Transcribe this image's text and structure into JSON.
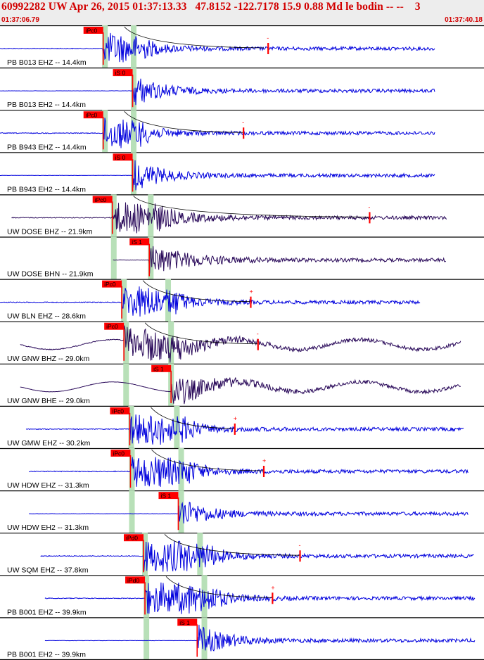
{
  "header": {
    "title": "60992282 UW Apr 26, 2015 01:37:13.33   47.8152 -122.7178 15.9 0.88 Md le bodin -- --    3",
    "time_start": "01:37:06.79",
    "time_end": "01:37:40.18"
  },
  "colors": {
    "header_bg": "#ededed",
    "header_text": "#d20000",
    "trace_blue": "#0000dd",
    "trace_dark": "#2a0a5a",
    "pick_flag": "#ff0000",
    "theoretical_bar": "#b8e0b8",
    "coda_line": "#000000"
  },
  "chart_data": {
    "type": "seismogram",
    "time_range": [
      "01:37:06.79",
      "01:37:40.18"
    ],
    "traces": [
      {
        "label": "PB B013 EHZ -- 14.4km",
        "pick": "iPc0",
        "color": "blue",
        "p_time": 7.12,
        "green_time": 7.24,
        "s_time": 9.06,
        "s_green_time": 9.22,
        "coda_time": 18.2,
        "amp_mark": "-",
        "amp_time": 18.5,
        "trace_start": 0.0,
        "trace_end": 30.0
      },
      {
        "label": "PB B013 EH2 -- 14.4km",
        "pick": "iS 0",
        "color": "blue",
        "p_time": 9.15,
        "green_time": null,
        "s_time": null,
        "s_green_time": 9.22,
        "coda_time": null,
        "amp_mark": null,
        "trace_start": 0.0,
        "trace_end": 30.0
      },
      {
        "label": "PB B943 EHZ -- 14.4km",
        "pick": "iPc0",
        "color": "blue",
        "p_time": 7.12,
        "green_time": 7.24,
        "s_time": null,
        "s_green_time": 9.22,
        "coda_time": 16.8,
        "amp_mark": "-",
        "amp_time": 16.8,
        "trace_start": 0.0,
        "trace_end": 30.0
      },
      {
        "label": "PB B943 EH2 -- 14.4km",
        "pick": "iS 0",
        "color": "blue",
        "p_time": 9.15,
        "green_time": null,
        "s_time": null,
        "s_green_time": 9.22,
        "coda_time": null,
        "amp_mark": null,
        "trace_start": 0.0,
        "trace_end": 30.0
      },
      {
        "label": "UW DOSE BHZ -- 21.9km",
        "pick": "iPc0",
        "color": "dark",
        "p_time": 7.75,
        "green_time": 7.85,
        "s_time": null,
        "s_green_time": 10.4,
        "coda_time": 25.5,
        "amp_mark": "-",
        "amp_time": 25.5,
        "trace_start": 0.8,
        "trace_end": 30.8
      },
      {
        "label": "UW DOSE BHN -- 21.9km",
        "pick": "iS 1",
        "color": "dark",
        "p_time": 10.3,
        "green_time": 7.85,
        "s_time": null,
        "s_green_time": 10.4,
        "coda_time": null,
        "amp_mark": null,
        "trace_start": 7.8,
        "trace_end": 30.8
      },
      {
        "label": "UW BLN EHZ -- 28.6km",
        "pick": "iPc0",
        "color": "blue",
        "p_time": 8.4,
        "green_time": 8.55,
        "s_time": null,
        "s_green_time": 11.6,
        "coda_time": 17.3,
        "amp_mark": "+",
        "amp_time": 17.3,
        "trace_start": 0.0,
        "trace_end": 29.0
      },
      {
        "label": "UW GNW BHZ -- 29.0km",
        "pick": "iPc0",
        "color": "dark",
        "p_time": 8.55,
        "green_time": 8.7,
        "s_time": null,
        "s_green_time": 11.8,
        "coda_time": 17.8,
        "amp_mark": "-",
        "amp_time": 17.8,
        "trace_start": 1.4,
        "trace_end": 31.8
      },
      {
        "label": "UW GNW BHE -- 29.0km",
        "pick": "iS 1",
        "color": "dark",
        "p_time": 11.8,
        "green_time": 8.7,
        "s_time": null,
        "s_green_time": 11.8,
        "coda_time": null,
        "amp_mark": null,
        "trace_start": 1.4,
        "trace_end": 31.8
      },
      {
        "label": "UW GMW EHZ -- 30.2km",
        "pick": "iPc0",
        "color": "blue",
        "p_time": 8.95,
        "green_time": 9.05,
        "s_time": null,
        "s_green_time": 12.2,
        "coda_time": 16.2,
        "amp_mark": "+",
        "amp_time": 16.2,
        "trace_start": 1.8,
        "trace_end": 32.0
      },
      {
        "label": "UW HDW EHZ -- 31.3km",
        "pick": "iPc0",
        "color": "blue",
        "p_time": 9.0,
        "green_time": 9.1,
        "s_time": null,
        "s_green_time": 12.5,
        "coda_time": 18.2,
        "amp_mark": "+",
        "amp_time": 18.2,
        "trace_start": 2.0,
        "trace_end": 32.3
      },
      {
        "label": "UW HDW EH2 -- 31.3km",
        "pick": "iS 1",
        "color": "blue",
        "p_time": 12.3,
        "green_time": 9.1,
        "s_time": null,
        "s_green_time": 12.5,
        "coda_time": null,
        "amp_mark": null,
        "trace_start": 2.0,
        "trace_end": 32.3
      },
      {
        "label": "UW SQM EHZ -- 37.8km",
        "pick": "iPd0",
        "color": "blue",
        "p_time": 9.9,
        "green_time": 10.0,
        "s_time": null,
        "s_green_time": 13.8,
        "coda_time": 20.7,
        "amp_mark": "-",
        "amp_time": 20.7,
        "trace_start": 2.8,
        "trace_end": 32.7
      },
      {
        "label": "PB B001 EHZ -- 39.9km",
        "pick": "iPd0",
        "color": "blue",
        "p_time": 10.0,
        "green_time": 10.1,
        "s_time": null,
        "s_green_time": 14.1,
        "coda_time": 18.8,
        "amp_mark": "+",
        "amp_time": 18.8,
        "trace_start": 3.1,
        "trace_end": 32.8
      },
      {
        "label": "PB B001 EH2 -- 39.9km",
        "pick": "iS 1",
        "color": "blue",
        "p_time": 13.6,
        "green_time": 10.1,
        "s_time": null,
        "s_green_time": 14.1,
        "coda_time": null,
        "amp_mark": null,
        "trace_start": 3.1,
        "trace_end": 32.8
      }
    ]
  }
}
